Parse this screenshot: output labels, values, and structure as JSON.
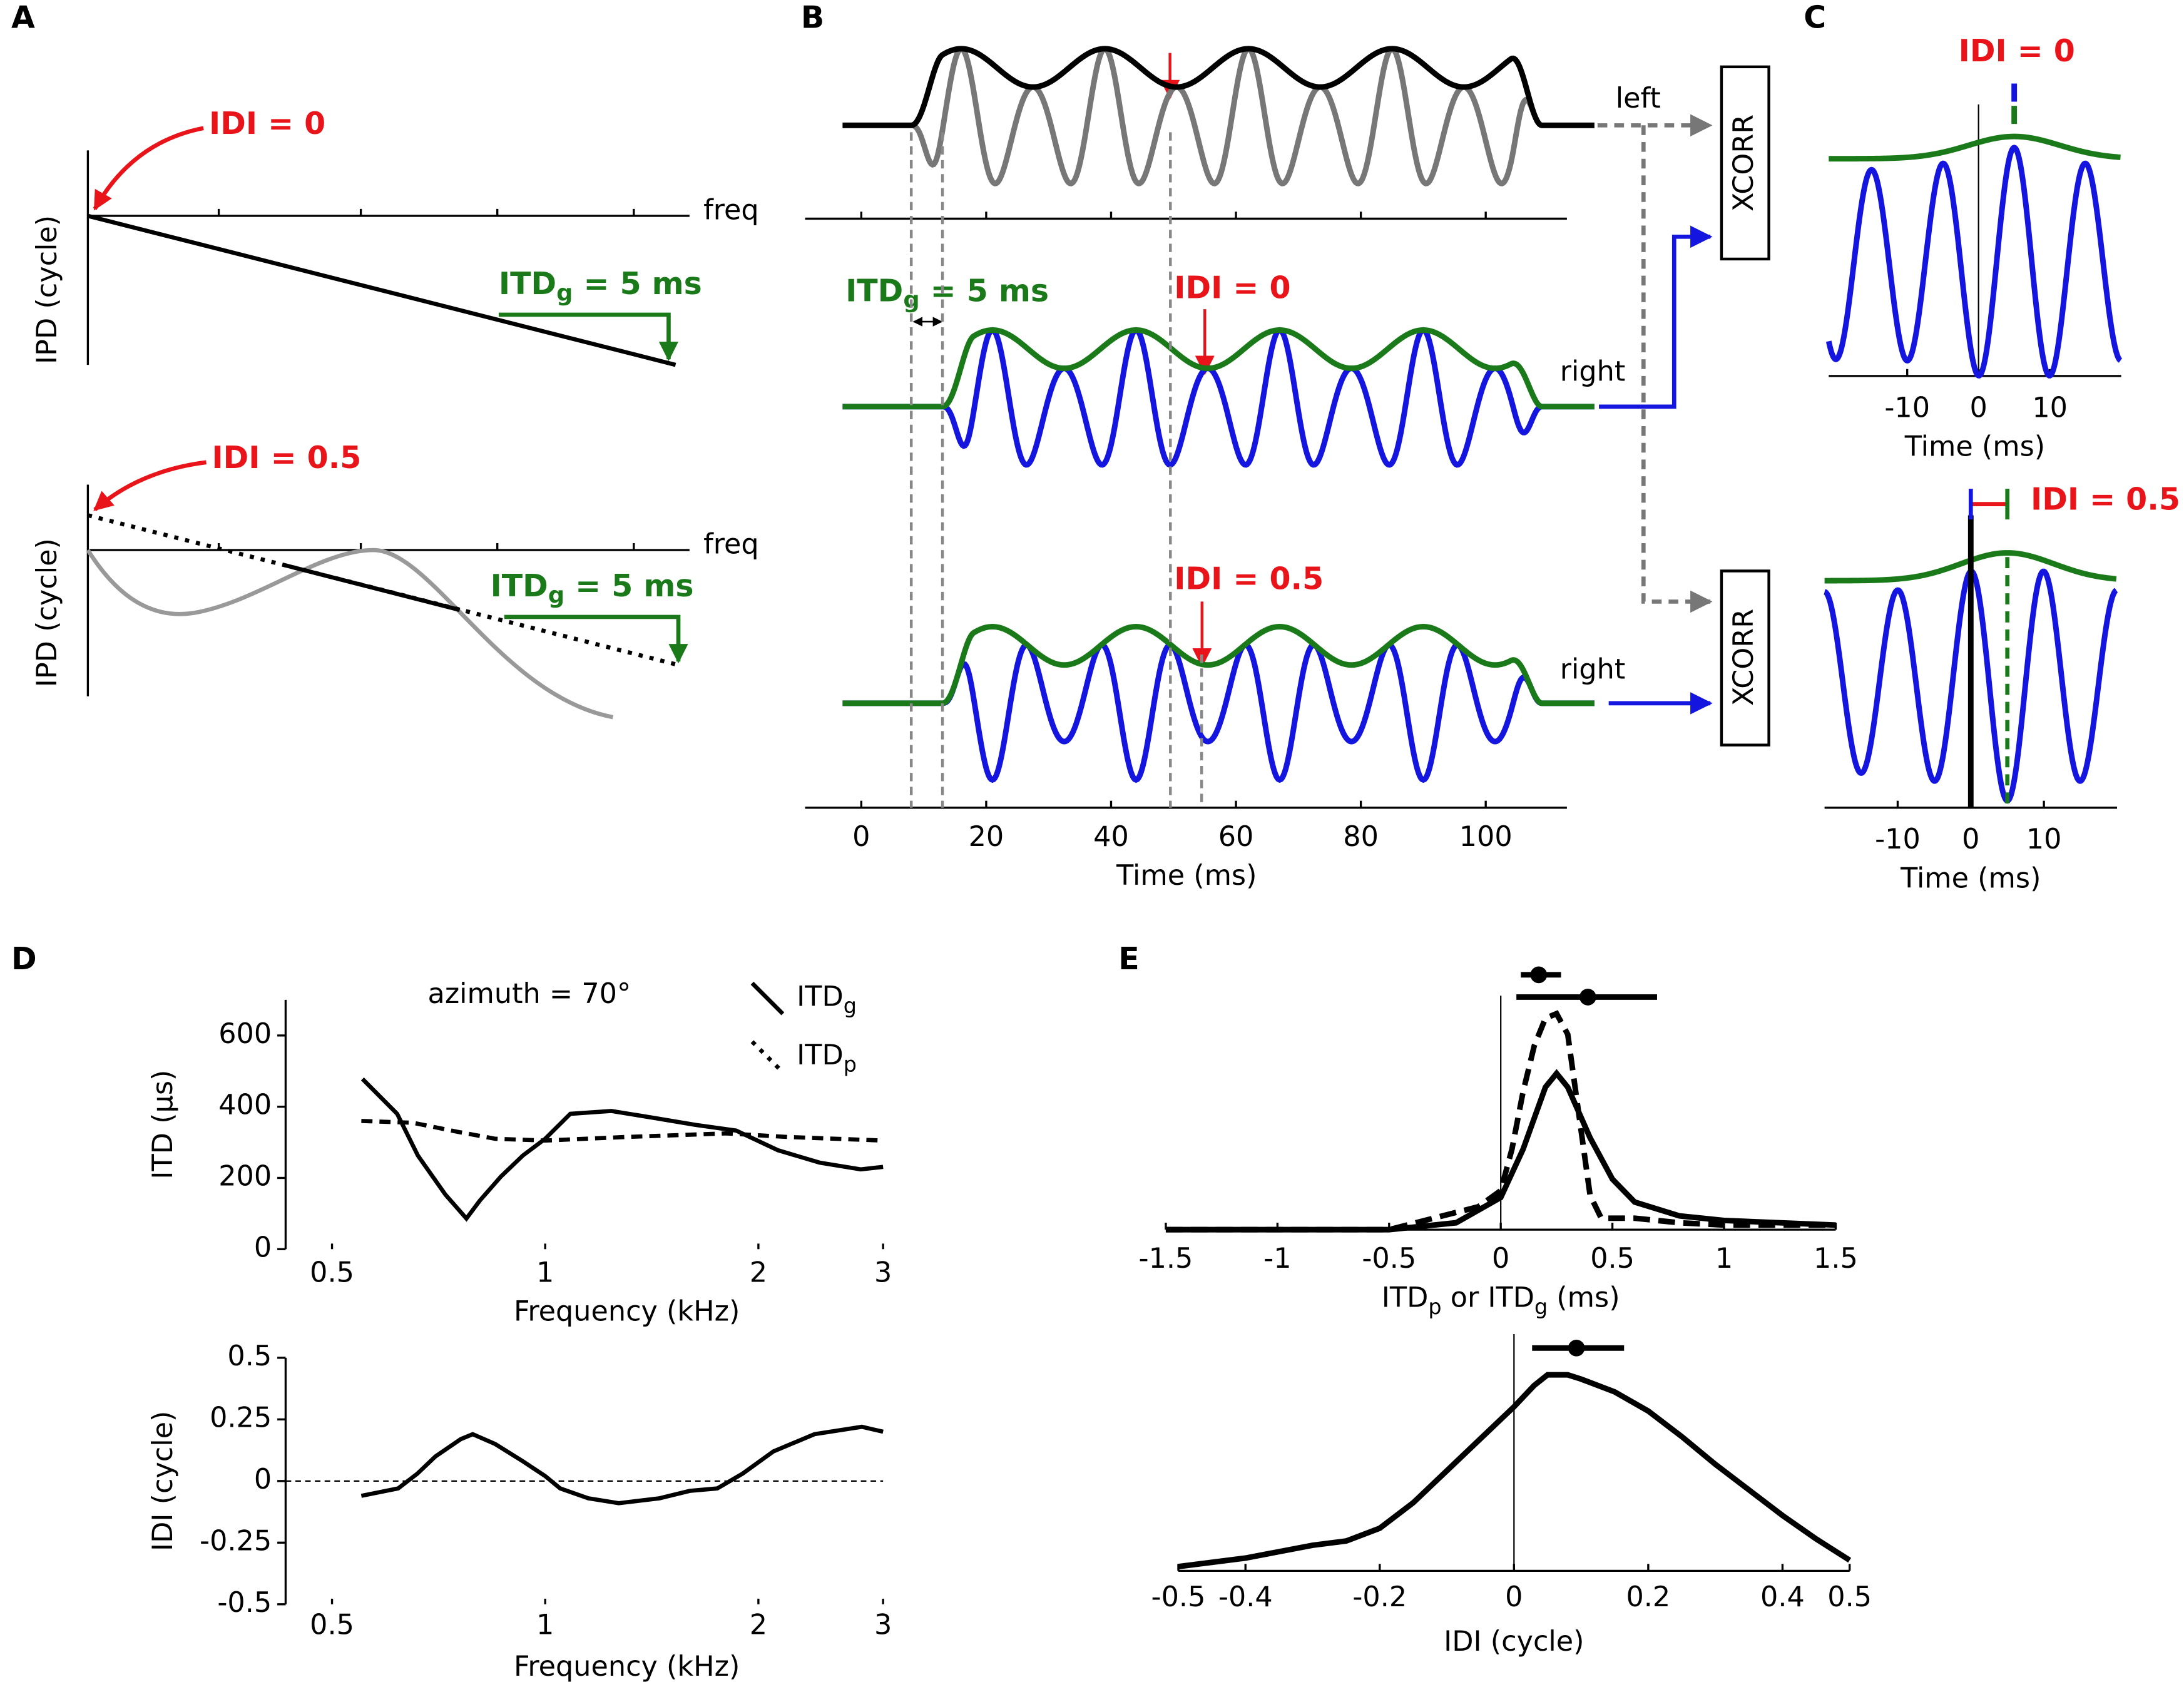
{
  "chart_data": [
    {
      "type": "schematic",
      "panel": "A",
      "annotation": "IDI = 0",
      "ylabel": "IPD (cycle)",
      "xlabel": "freq",
      "itd_label": [
        "ITD",
        "g",
        " = 5 ms"
      ]
    },
    {
      "type": "schematic",
      "annotation": "IDI = 0.5",
      "ylabel": "IPD (cycle)",
      "xlabel": "freq",
      "itd_label": [
        "ITD",
        "g",
        " = 5 ms"
      ]
    },
    {
      "type": "waveform",
      "panel": "B",
      "xlabel": "Time (ms)",
      "xlim": [
        -9,
        113
      ],
      "xticks": [
        0,
        20,
        40,
        60,
        80,
        100
      ],
      "itd_label": [
        "ITD",
        "g",
        " = 5 ms"
      ],
      "annotations": [
        "IDI = 0",
        "IDI = 0.5"
      ],
      "channels": [
        "left",
        "right",
        "right"
      ],
      "boxes": [
        "XCORR",
        "XCORR"
      ]
    },
    {
      "type": "xcorr",
      "panel": "C",
      "annotation": "IDI = 0",
      "xlabel": "Time (ms)",
      "xlim": [
        -21,
        20
      ],
      "xticks": [
        -10,
        0,
        10
      ]
    },
    {
      "type": "xcorr",
      "annotation": "IDI = 0.5",
      "xlabel": "Time (ms)",
      "xlim": [
        -20,
        20
      ],
      "xticks": [
        -10,
        0,
        10
      ]
    },
    {
      "type": "line",
      "panel": "D",
      "title": "azimuth = 70°",
      "ylabel": "ITD (µs)",
      "xlabel": "Frequency (kHz)",
      "xscale": "log",
      "xlim": [
        0.43,
        3
      ],
      "xticks": [
        0.5,
        1,
        2,
        3
      ],
      "ylim": [
        0,
        700
      ],
      "yticks": [
        0,
        200,
        400,
        600
      ],
      "series": [
        {
          "name": [
            "ITD",
            "g"
          ],
          "style": "solid",
          "color": "#000000",
          "x": [
            0.552,
            0.618,
            0.661,
            0.723,
            0.774,
            0.809,
            0.866,
            0.93,
            1.0,
            1.085,
            1.24,
            1.42,
            1.63,
            1.86,
            2.13,
            2.44,
            2.79,
            3.0
          ],
          "values": [
            478,
            380,
            263,
            153,
            86,
            137,
            204,
            263,
            310,
            380,
            388,
            369,
            349,
            333,
            278,
            243,
            224,
            231
          ]
        },
        {
          "name": [
            "ITD",
            "p"
          ],
          "style": "dashed",
          "color": "#000000",
          "x": [
            0.55,
            0.65,
            0.75,
            0.85,
            1.0,
            1.3,
            1.8,
            2.2,
            3.0
          ],
          "values": [
            360,
            355,
            330,
            310,
            305,
            315,
            325,
            315,
            305
          ]
        }
      ]
    },
    {
      "type": "line",
      "ylabel": "IDI (cycle)",
      "xlabel": "Frequency (kHz)",
      "xscale": "log",
      "xlim": [
        0.43,
        3
      ],
      "xticks": [
        0.5,
        1,
        2,
        3
      ],
      "ylim": [
        -0.5,
        0.5
      ],
      "yticks": [
        -0.5,
        -0.25,
        0,
        0.25,
        0.5
      ],
      "series": [
        {
          "style": "solid",
          "color": "#000000",
          "x": [
            0.55,
            0.62,
            0.66,
            0.7,
            0.76,
            0.79,
            0.85,
            0.93,
            1.0,
            1.05,
            1.15,
            1.27,
            1.45,
            1.6,
            1.75,
            1.9,
            2.1,
            2.4,
            2.8,
            3.0
          ],
          "values": [
            -0.06,
            -0.03,
            0.03,
            0.1,
            0.17,
            0.19,
            0.15,
            0.08,
            0.02,
            -0.03,
            -0.07,
            -0.09,
            -0.07,
            -0.04,
            -0.03,
            0.03,
            0.12,
            0.19,
            0.22,
            0.2
          ]
        }
      ]
    },
    {
      "type": "density",
      "panel": "E",
      "xlabel": [
        "ITD",
        "p",
        " or ITD",
        "g",
        " (ms)"
      ],
      "xlim": [
        -1.5,
        1.5
      ],
      "xticks": [
        -1.5,
        -1,
        -0.5,
        0,
        0.5,
        1,
        1.5
      ],
      "ylim": [
        0,
        1
      ],
      "series": [
        {
          "style": "dashed",
          "color": "#000000",
          "x": [
            -1.5,
            -0.5,
            -0.3,
            -0.1,
            0,
            0.05,
            0.1,
            0.15,
            0.2,
            0.25,
            0.3,
            0.35,
            0.4,
            0.45,
            0.6,
            0.8,
            1.0,
            1.5
          ],
          "values": [
            0,
            0,
            0.05,
            0.1,
            0.17,
            0.35,
            0.6,
            0.8,
            0.92,
            0.94,
            0.85,
            0.5,
            0.15,
            0.05,
            0.05,
            0.03,
            0.02,
            0.02
          ]
        },
        {
          "style": "solid",
          "color": "#000000",
          "x": [
            -1.5,
            -0.5,
            -0.2,
            0,
            0.1,
            0.2,
            0.25,
            0.3,
            0.4,
            0.5,
            0.6,
            0.8,
            1.0,
            1.5
          ],
          "values": [
            0,
            0,
            0.03,
            0.14,
            0.35,
            0.62,
            0.68,
            0.62,
            0.4,
            0.22,
            0.12,
            0.06,
            0.04,
            0.02
          ]
        }
      ],
      "error_bars": [
        {
          "value": 0.17,
          "low": 0.09,
          "high": 0.27
        },
        {
          "value": 0.39,
          "low": 0.07,
          "high": 0.7
        }
      ]
    },
    {
      "type": "density",
      "xlabel": "IDI (cycle)",
      "xlim": [
        -0.5,
        0.5
      ],
      "xticks": [
        -0.5,
        -0.4,
        -0.2,
        0,
        0.2,
        0.4,
        0.5
      ],
      "ylim": [
        0,
        1
      ],
      "series": [
        {
          "style": "solid",
          "color": "#000000",
          "x": [
            -0.5,
            -0.4,
            -0.3,
            -0.25,
            -0.2,
            -0.15,
            -0.1,
            -0.05,
            0,
            0.03,
            0.05,
            0.08,
            0.1,
            0.15,
            0.2,
            0.25,
            0.3,
            0.35,
            0.4,
            0.45,
            0.5
          ],
          "values": [
            0.02,
            0.06,
            0.12,
            0.14,
            0.2,
            0.32,
            0.47,
            0.62,
            0.77,
            0.87,
            0.92,
            0.92,
            0.9,
            0.84,
            0.75,
            0.63,
            0.5,
            0.38,
            0.26,
            0.15,
            0.05
          ]
        }
      ],
      "error_bars": [
        {
          "value": 0.093,
          "low": 0.027,
          "high": 0.164
        }
      ]
    }
  ]
}
